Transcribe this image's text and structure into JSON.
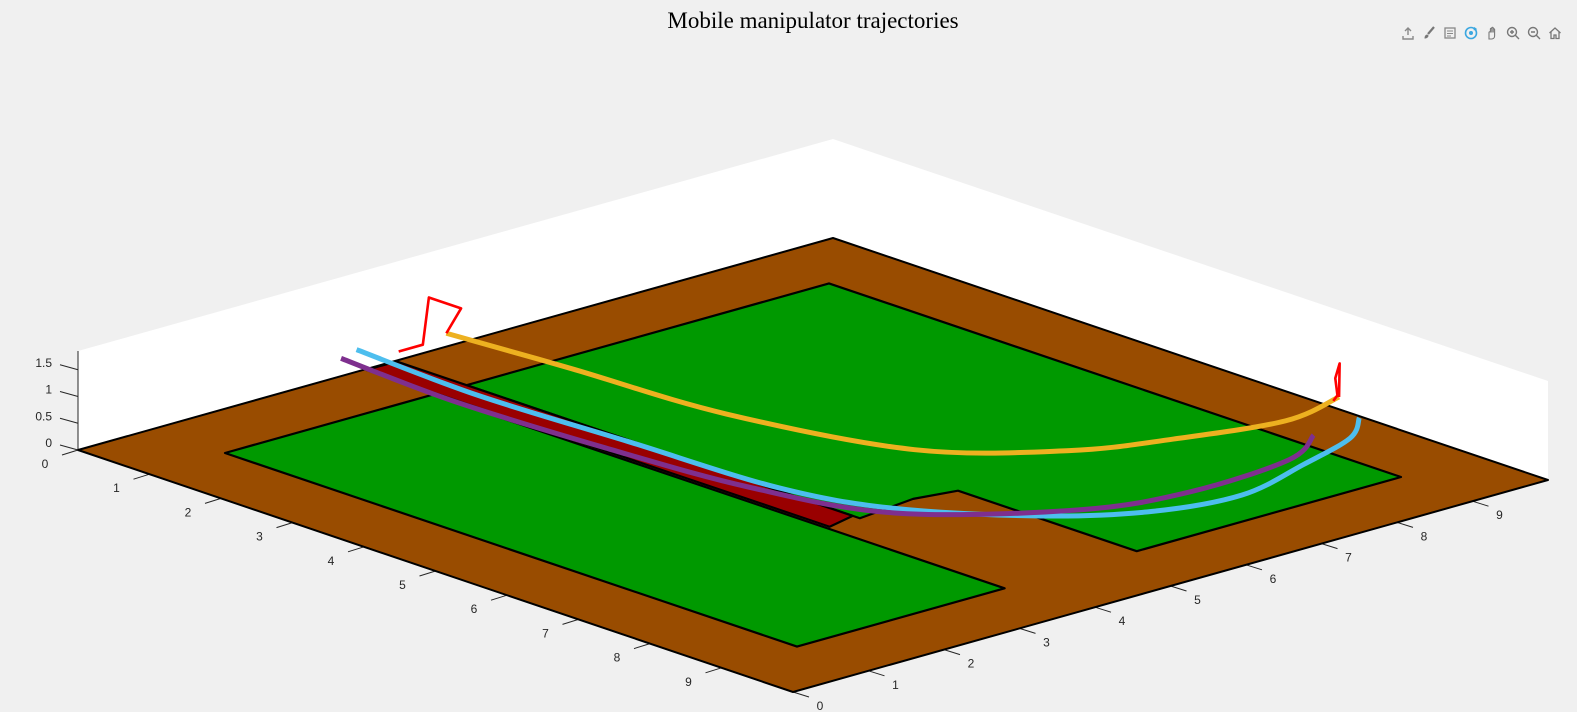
{
  "figure": {
    "title": "Mobile manipulator trajectories",
    "toolbar": [
      {
        "name": "export-icon",
        "label": "Export"
      },
      {
        "name": "brush-icon",
        "label": "Brush"
      },
      {
        "name": "datatip-icon",
        "label": "Data tips"
      },
      {
        "name": "rotate-icon",
        "label": "Rotate 3D",
        "active": true
      },
      {
        "name": "pan-icon",
        "label": "Pan"
      },
      {
        "name": "zoom-in-icon",
        "label": "Zoom in"
      },
      {
        "name": "zoom-out-icon",
        "label": "Zoom out"
      },
      {
        "name": "home-icon",
        "label": "Restore view"
      }
    ]
  },
  "chart_data": {
    "type": "line3d",
    "title": "Mobile manipulator trajectories",
    "xlim": [
      0,
      10
    ],
    "ylim": [
      0,
      10
    ],
    "zlim": [
      0,
      1.85
    ],
    "xticks": [
      "0",
      "1",
      "2",
      "3",
      "4",
      "5",
      "6",
      "7",
      "8",
      "9"
    ],
    "yticks": [
      "0",
      "1",
      "2",
      "3",
      "4",
      "5",
      "6",
      "7",
      "8",
      "9"
    ],
    "zticks": [
      "0",
      "0.5",
      "1",
      "1.5"
    ],
    "colors": {
      "ground": "#994c00",
      "free_space": "#009900",
      "obstacle": "#990000",
      "outline": "#000000",
      "trajectory_yellow": "#edb120",
      "trajectory_blue": "#4dbeee",
      "trajectory_purple": "#7e2f8e",
      "arm": "#ff0000"
    },
    "surfaces": [
      {
        "kind": "ground",
        "points": [
          [
            0,
            0
          ],
          [
            10,
            0
          ],
          [
            10,
            10
          ],
          [
            0,
            10
          ]
        ]
      },
      {
        "kind": "free_space",
        "points": [
          [
            1,
            1
          ],
          [
            9,
            1
          ],
          [
            9,
            3.75
          ],
          [
            1,
            3.75
          ]
        ]
      },
      {
        "kind": "free_space",
        "points": [
          [
            1,
            4.2
          ],
          [
            6.5,
            4.2
          ],
          [
            6.4,
            5
          ],
          [
            6.5,
            5.5
          ],
          [
            9,
            5.5
          ],
          [
            9,
            9
          ],
          [
            1,
            9
          ]
        ]
      },
      {
        "kind": "obstacle",
        "points": [
          [
            0.02,
            3.8
          ],
          [
            6.5,
            3.8
          ],
          [
            6.4,
            4.2
          ],
          [
            0.02,
            4.2
          ]
        ]
      }
    ],
    "series": [
      {
        "color_key": "trajectory_yellow",
        "points": [
          [
            0.4,
            4.5,
            0.58
          ],
          [
            2,
            4.65,
            0.58
          ],
          [
            4,
            4.8,
            0.58
          ],
          [
            6,
            5.4,
            0.58
          ],
          [
            7,
            6.5,
            0.58
          ],
          [
            7.4,
            7.5,
            0.58
          ],
          [
            7.7,
            8.7,
            0.58
          ],
          [
            7.5,
            9.6,
            0.58
          ]
        ]
      },
      {
        "color_key": "trajectory_blue",
        "points": [
          [
            0.2,
            3.5,
            0.58
          ],
          [
            2,
            3.4,
            0.58
          ],
          [
            4,
            3.5,
            0.58
          ],
          [
            6,
            3.6,
            0.58
          ],
          [
            7.2,
            4,
            0.58
          ],
          [
            8.3,
            4.9,
            0.58
          ],
          [
            8.9,
            5.8,
            0.58
          ],
          [
            9.1,
            6.8,
            0.58
          ],
          [
            8.8,
            7.9,
            0.58
          ],
          [
            8.5,
            8.8,
            0.58
          ],
          [
            8.1,
            9.3,
            0.58
          ]
        ]
      },
      {
        "color_key": "trajectory_purple",
        "points": [
          [
            0.3,
            3.2,
            0.58
          ],
          [
            2,
            3.1,
            0.58
          ],
          [
            4,
            3.2,
            0.58
          ],
          [
            5.8,
            3.4,
            0.58
          ],
          [
            7.3,
            3.9,
            0.58
          ],
          [
            8.4,
            5.3,
            0.58
          ],
          [
            8.7,
            6.5,
            0.58
          ],
          [
            8.6,
            7.9,
            0.58
          ],
          [
            8.2,
            8.6,
            0.58
          ]
        ]
      },
      {
        "color_key": "arm",
        "points": [
          [
            0.4,
            4.5,
            0.58
          ],
          [
            0.5,
            4.6,
            1.05
          ],
          [
            0.05,
            4.6,
            1.05
          ],
          [
            0.05,
            4.52,
            0.2
          ],
          [
            0.05,
            4.2,
            0.2
          ]
        ]
      },
      {
        "color_key": "arm",
        "points": [
          [
            7.5,
            9.6,
            0.58
          ],
          [
            7.35,
            9.75,
            1.08
          ],
          [
            7.5,
            9.55,
            0.95
          ],
          [
            7.9,
            9.2,
            0.95
          ],
          [
            8.0,
            9.05,
            0.95
          ]
        ]
      }
    ]
  }
}
